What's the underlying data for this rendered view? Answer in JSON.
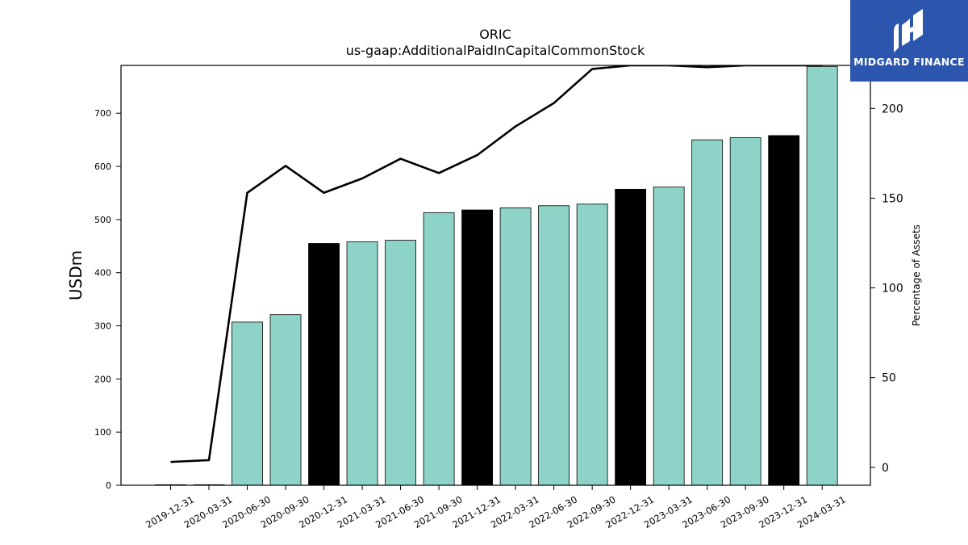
{
  "logo": {
    "text": "MIDGARD FINANCE",
    "icon": "midgard-logo-icon",
    "bg_color": "#2c56ad"
  },
  "chart_data": {
    "type": "bar",
    "title": "ORIC",
    "subtitle": "us-gaap:AdditionalPaidInCapitalCommonStock",
    "ylabel": "USDm",
    "y2label": "Percentage of Assets",
    "ylim": [
      0,
      790
    ],
    "y2lim": [
      -10,
      224
    ],
    "yticks": [
      0,
      100,
      200,
      300,
      400,
      500,
      600,
      700
    ],
    "y2ticks": [
      0,
      50,
      100,
      150,
      200
    ],
    "categories": [
      "2019-12-31",
      "2020-03-31",
      "2020-06-30",
      "2020-09-30",
      "2020-12-31",
      "2021-03-31",
      "2021-06-30",
      "2021-09-30",
      "2021-12-31",
      "2022-03-31",
      "2022-06-30",
      "2022-09-30",
      "2022-12-31",
      "2023-03-31",
      "2023-06-30",
      "2023-09-30",
      "2023-12-31",
      "2024-03-31"
    ],
    "series": [
      {
        "kind": "bar",
        "axis": "left",
        "values": [
          1,
          1,
          307,
          321,
          455,
          458,
          461,
          513,
          518,
          522,
          526,
          529,
          557,
          561,
          650,
          654,
          658,
          788
        ],
        "colors": [
          "#000000",
          "#000000",
          "#8dd3c7",
          "#8dd3c7",
          "#000000",
          "#8dd3c7",
          "#8dd3c7",
          "#8dd3c7",
          "#000000",
          "#8dd3c7",
          "#8dd3c7",
          "#8dd3c7",
          "#000000",
          "#8dd3c7",
          "#8dd3c7",
          "#8dd3c7",
          "#000000",
          "#8dd3c7"
        ]
      },
      {
        "kind": "line",
        "axis": "right",
        "color": "#000000",
        "values": [
          3,
          4,
          153,
          168,
          153,
          161,
          172,
          164,
          174,
          190,
          203,
          222,
          224,
          224,
          223,
          224,
          224,
          224
        ]
      }
    ],
    "grid": false,
    "legend": "none"
  }
}
